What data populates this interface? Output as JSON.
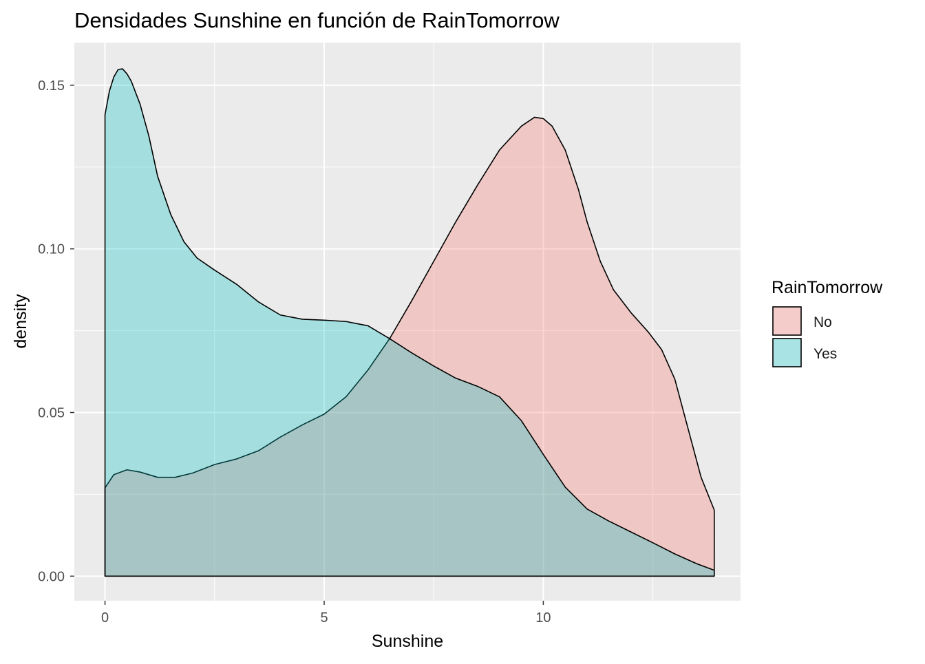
{
  "chart_data": {
    "type": "area",
    "title": "Densidades Sunshine en función de RainTomorrow",
    "xlabel": "Sunshine",
    "ylabel": "density",
    "xlim": [
      -0.7,
      14.5
    ],
    "ylim": [
      -0.0075,
      0.163
    ],
    "x_ticks": [
      0,
      5,
      10
    ],
    "x_tick_labels": [
      "0",
      "5",
      "10"
    ],
    "y_ticks": [
      0.0,
      0.05,
      0.1,
      0.15
    ],
    "y_tick_labels": [
      "0.00",
      "0.05",
      "0.10",
      "0.15"
    ],
    "grid": true,
    "legend": {
      "title": "RainTomorrow",
      "position": "right"
    },
    "series": [
      {
        "name": "No",
        "color": "#F8766D",
        "fill_opacity": 0.3,
        "x": [
          0,
          0.2,
          0.5,
          0.8,
          1.2,
          1.6,
          2.0,
          2.5,
          3.0,
          3.5,
          4.0,
          4.5,
          5.0,
          5.5,
          6.0,
          6.5,
          7.0,
          7.5,
          8.0,
          8.5,
          9.0,
          9.5,
          9.8,
          10.0,
          10.2,
          10.5,
          10.8,
          11.0,
          11.3,
          11.6,
          12.0,
          12.4,
          12.7,
          13.0,
          13.3,
          13.6,
          13.9
        ],
        "y": [
          0.027,
          0.031,
          0.0325,
          0.0318,
          0.0302,
          0.0302,
          0.0315,
          0.0341,
          0.0358,
          0.0383,
          0.0425,
          0.0462,
          0.0495,
          0.0548,
          0.063,
          0.0727,
          0.0842,
          0.0962,
          0.1082,
          0.1195,
          0.1302,
          0.1375,
          0.1402,
          0.1398,
          0.1375,
          0.1302,
          0.1182,
          0.1082,
          0.0962,
          0.0875,
          0.0805,
          0.0745,
          0.0692,
          0.0602,
          0.0452,
          0.0302,
          0.0202
        ]
      },
      {
        "name": "Yes",
        "color": "#00BFC4",
        "fill_opacity": 0.3,
        "x": [
          0,
          0.1,
          0.2,
          0.3,
          0.4,
          0.5,
          0.6,
          0.8,
          1.0,
          1.2,
          1.5,
          1.8,
          2.1,
          2.5,
          3.0,
          3.5,
          4.0,
          4.5,
          5.0,
          5.5,
          6.0,
          6.5,
          7.0,
          7.5,
          8.0,
          8.5,
          9.0,
          9.5,
          10.0,
          10.5,
          11.0,
          11.5,
          12.0,
          12.5,
          13.0,
          13.5,
          13.9
        ],
        "y": [
          0.141,
          0.1482,
          0.1525,
          0.1548,
          0.155,
          0.1535,
          0.1512,
          0.1442,
          0.1345,
          0.1222,
          0.1105,
          0.1022,
          0.0972,
          0.0935,
          0.0892,
          0.0838,
          0.0798,
          0.0785,
          0.0782,
          0.0778,
          0.0765,
          0.0725,
          0.0682,
          0.0642,
          0.0605,
          0.058,
          0.0548,
          0.0475,
          0.0372,
          0.0272,
          0.0205,
          0.0168,
          0.0135,
          0.0102,
          0.0068,
          0.0038,
          0.0018
        ]
      }
    ]
  }
}
